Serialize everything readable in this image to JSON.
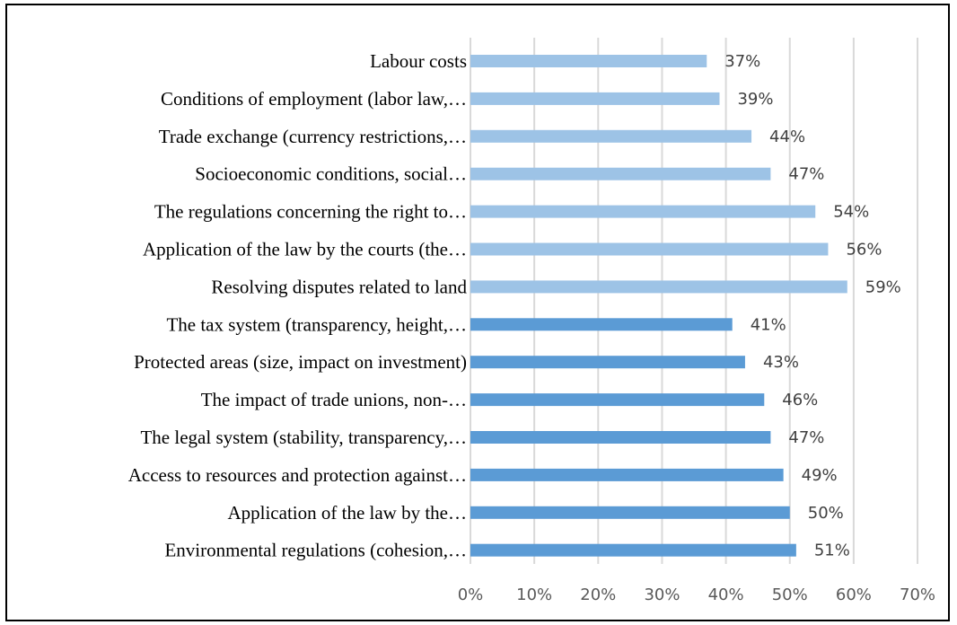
{
  "chart_data": {
    "type": "bar",
    "orientation": "horizontal",
    "categories": [
      "Labour costs",
      "Conditions of employment (labor law,…",
      "Trade exchange (currency restrictions,…",
      "Socioeconomic conditions, social…",
      "The regulations concerning the right to…",
      "Application of the law by the courts (the…",
      "Resolving disputes related to land",
      "The tax system (transparency, height,…",
      "Protected areas (size, impact on investment)",
      "The impact of trade unions, non-…",
      "The legal system (stability, transparency,…",
      "Access to resources and protection against…",
      "Application of the law by the…",
      "Environmental regulations (cohesion,…"
    ],
    "values": [
      37,
      39,
      44,
      47,
      54,
      56,
      59,
      41,
      43,
      46,
      47,
      49,
      50,
      51
    ],
    "value_labels": [
      "37%",
      "39%",
      "44%",
      "47%",
      "54%",
      "56%",
      "59%",
      "41%",
      "43%",
      "46%",
      "47%",
      "49%",
      "50%",
      "51%"
    ],
    "group": [
      "light",
      "light",
      "light",
      "light",
      "light",
      "light",
      "light",
      "dark",
      "dark",
      "dark",
      "dark",
      "dark",
      "dark",
      "dark"
    ],
    "colors": {
      "light": "#9dc3e6",
      "dark": "#5b9bd5",
      "grid": "#d9d9d9",
      "frame": "#000000"
    },
    "xlim": [
      0,
      70
    ],
    "xticks": [
      0,
      10,
      20,
      30,
      40,
      50,
      60,
      70
    ],
    "xtick_labels": [
      "0%",
      "10%",
      "20%",
      "30%",
      "40%",
      "50%",
      "60%",
      "70%"
    ],
    "grid": true,
    "legend": "none",
    "title": "",
    "xlabel": "",
    "ylabel": ""
  }
}
